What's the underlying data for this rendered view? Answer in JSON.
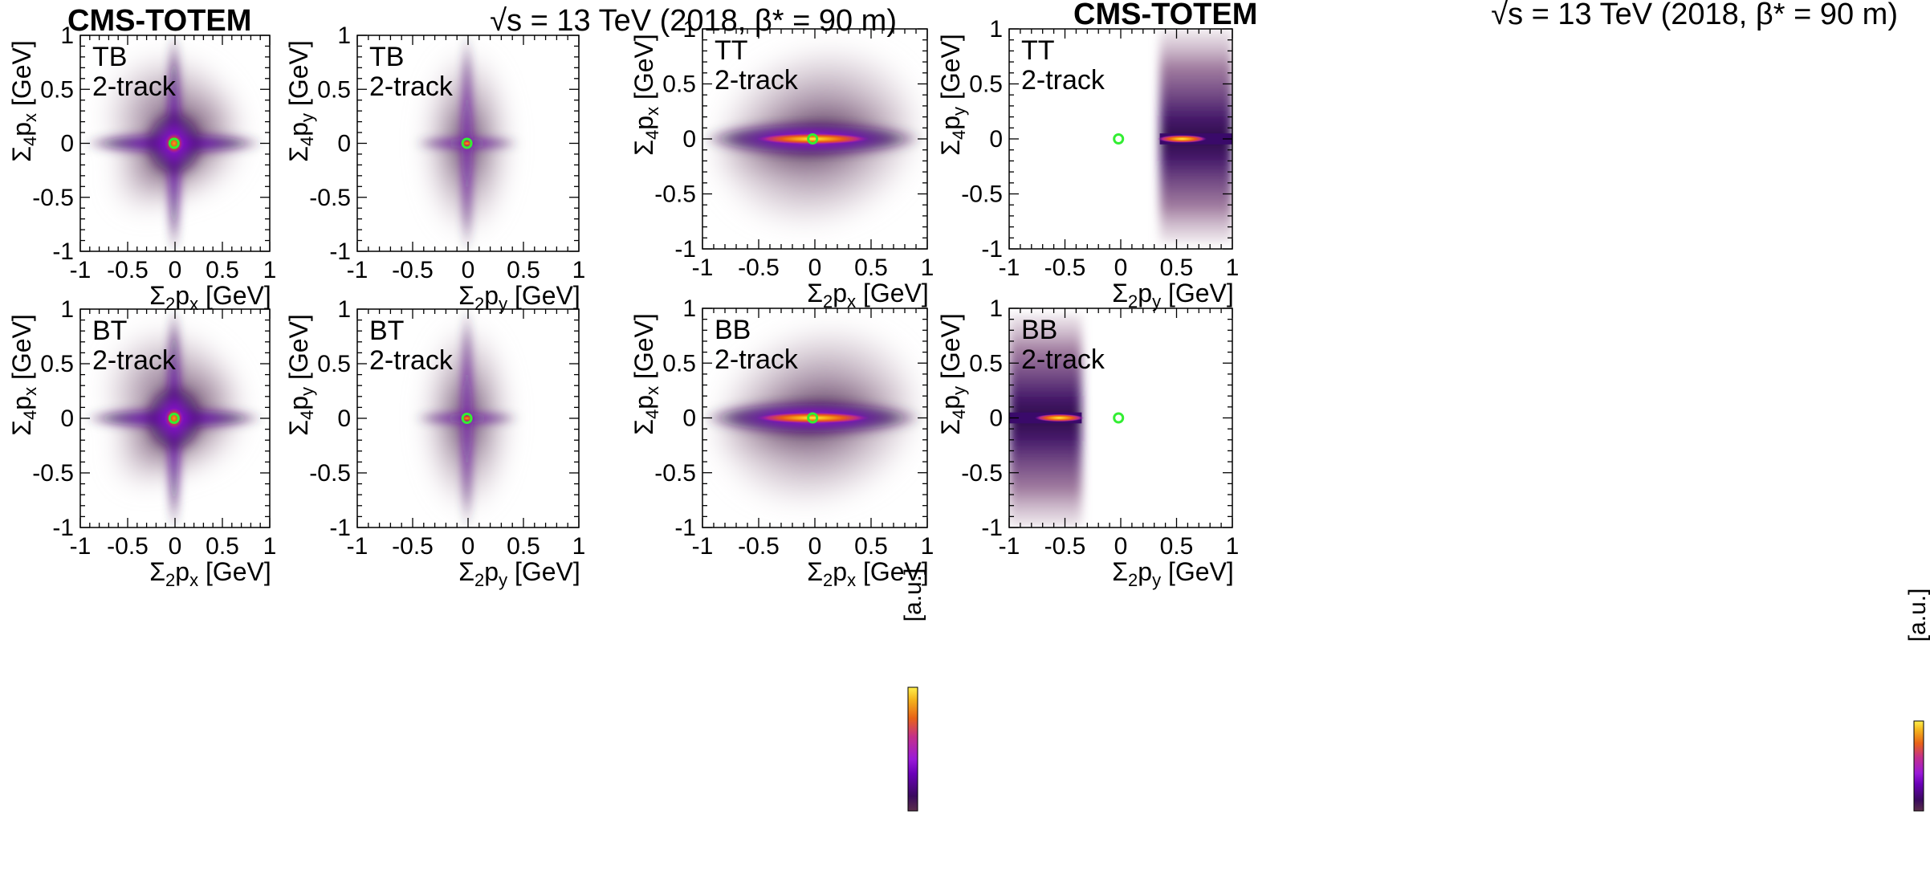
{
  "chart_data": [
    {
      "type": "heatmap",
      "panel": "TB-x",
      "labels": [
        "TB",
        "2-track"
      ],
      "xlabel": {
        "pre": "Σ",
        "sub1": "2",
        "mid": "p",
        "sub2": "x",
        "post": " [GeV]"
      },
      "ylabel": {
        "pre": "Σ",
        "sub1": "4",
        "mid": "p",
        "sub2": "x",
        "post": " [GeV]"
      },
      "xlim": [
        -1,
        1
      ],
      "ylim": [
        -1,
        1
      ],
      "x_ticks": [
        "-1",
        "-0.5",
        "0",
        "0.5",
        "1"
      ],
      "y_ticks": [
        "-1",
        "-0.5",
        "0",
        "0.5",
        "1"
      ],
      "distribution": {
        "shape": "cross",
        "peak": [
          -0.01,
          0.0
        ],
        "arm_extent": {
          "x": [
            -0.95,
            0.95
          ],
          "y": [
            -1.0,
            1.0
          ]
        },
        "diffuse_halo": true,
        "halo_direction": "NE-SW diagonal, more toward upper-right"
      },
      "marker": {
        "shape": "open-circle",
        "x": -0.01,
        "y": 0.0,
        "color": "#33ee33"
      }
    },
    {
      "type": "heatmap",
      "panel": "TB-y",
      "labels": [
        "TB",
        "2-track"
      ],
      "xlabel": {
        "pre": "Σ",
        "sub1": "2",
        "mid": "p",
        "sub2": "y",
        "post": " [GeV]"
      },
      "ylabel": {
        "pre": "Σ",
        "sub1": "4",
        "mid": "p",
        "sub2": "y",
        "post": " [GeV]"
      },
      "xlim": [
        -1,
        1
      ],
      "ylim": [
        -1,
        1
      ],
      "x_ticks": [
        "-1",
        "-0.5",
        "0",
        "0.5",
        "1"
      ],
      "y_ticks": [
        "-1",
        "-0.5",
        "0",
        "0.5",
        "1"
      ],
      "distribution": {
        "shape": "narrow-cross",
        "peak": [
          -0.01,
          0.0
        ],
        "arm_extent": {
          "x": [
            -0.48,
            0.48
          ],
          "y": [
            -1.0,
            1.0
          ]
        },
        "diffuse_halo": true,
        "halo_x_range": [
          -0.45,
          0.45
        ]
      },
      "marker": {
        "shape": "open-circle",
        "x": -0.01,
        "y": 0.0,
        "color": "#33ee33"
      }
    },
    {
      "type": "heatmap",
      "panel": "TT-x",
      "labels": [
        "TT",
        "2-track"
      ],
      "xlabel": {
        "pre": "Σ",
        "sub1": "2",
        "mid": "p",
        "sub2": "x",
        "post": " [GeV]"
      },
      "ylabel": {
        "pre": "Σ",
        "sub1": "4",
        "mid": "p",
        "sub2": "x",
        "post": " [GeV]"
      },
      "xlim": [
        -1,
        1
      ],
      "ylim": [
        -1,
        1
      ],
      "x_ticks": [
        "-1",
        "-0.5",
        "0",
        "0.5",
        "1"
      ],
      "y_ticks": [
        "-1",
        "-0.5",
        "0",
        "0.5",
        "1"
      ],
      "distribution": {
        "shape": "horizontal-ellipse",
        "peak": [
          -0.02,
          0.0
        ],
        "core_halfwidth": [
          0.5,
          0.05
        ],
        "diffuse_halo": true,
        "tilt": "positive correlation"
      },
      "marker": {
        "shape": "open-circle",
        "x": -0.02,
        "y": 0.0,
        "color": "#33ee33"
      }
    },
    {
      "type": "heatmap",
      "panel": "TT-y",
      "labels": [
        "TT",
        "2-track"
      ],
      "xlabel": {
        "pre": "Σ",
        "sub1": "2",
        "mid": "p",
        "sub2": "y",
        "post": " [GeV]"
      },
      "ylabel": {
        "pre": "Σ",
        "sub1": "4",
        "mid": "p",
        "sub2": "y",
        "post": " [GeV]"
      },
      "xlim": [
        -1,
        1
      ],
      "ylim": [
        -1,
        1
      ],
      "x_ticks": [
        "-1",
        "-0.5",
        "0",
        "0.5",
        "1"
      ],
      "y_ticks": [
        "-1",
        "-0.5",
        "0",
        "0.5",
        "1"
      ],
      "distribution": {
        "shape": "band",
        "peak": [
          0.55,
          0.0
        ],
        "x_range": [
          0.35,
          1.0
        ],
        "y_range": [
          -0.95,
          1.0
        ],
        "sharp_edge_x": 0.35
      },
      "marker": {
        "shape": "open-circle",
        "x": -0.02,
        "y": 0.0,
        "color": "#33ee33"
      }
    },
    {
      "type": "heatmap",
      "panel": "BT-x",
      "labels": [
        "BT",
        "2-track"
      ],
      "xlabel": {
        "pre": "Σ",
        "sub1": "2",
        "mid": "p",
        "sub2": "x",
        "post": " [GeV]"
      },
      "ylabel": {
        "pre": "Σ",
        "sub1": "4",
        "mid": "p",
        "sub2": "x",
        "post": " [GeV]"
      },
      "xlim": [
        -1,
        1
      ],
      "ylim": [
        -1,
        1
      ],
      "x_ticks": [
        "-1",
        "-0.5",
        "0",
        "0.5",
        "1"
      ],
      "y_ticks": [
        "-1",
        "-0.5",
        "0",
        "0.5",
        "1"
      ],
      "distribution": {
        "shape": "cross",
        "peak": [
          -0.01,
          0.0
        ],
        "arm_extent": {
          "x": [
            -0.95,
            0.95
          ],
          "y": [
            -1.0,
            1.0
          ]
        },
        "diffuse_halo": true,
        "halo_direction": "NE-SW diagonal, more toward upper-right"
      },
      "marker": {
        "shape": "open-circle",
        "x": -0.01,
        "y": 0.0,
        "color": "#33ee33"
      }
    },
    {
      "type": "heatmap",
      "panel": "BT-y",
      "labels": [
        "BT",
        "2-track"
      ],
      "xlabel": {
        "pre": "Σ",
        "sub1": "2",
        "mid": "p",
        "sub2": "y",
        "post": " [GeV]"
      },
      "ylabel": {
        "pre": "Σ",
        "sub1": "4",
        "mid": "p",
        "sub2": "y",
        "post": " [GeV]"
      },
      "xlim": [
        -1,
        1
      ],
      "ylim": [
        -1,
        1
      ],
      "x_ticks": [
        "-1",
        "-0.5",
        "0",
        "0.5",
        "1"
      ],
      "y_ticks": [
        "-1",
        "-0.5",
        "0",
        "0.5",
        "1"
      ],
      "distribution": {
        "shape": "narrow-cross",
        "peak": [
          -0.01,
          0.0
        ],
        "arm_extent": {
          "x": [
            -0.48,
            0.48
          ],
          "y": [
            -1.0,
            1.0
          ]
        },
        "diffuse_halo": true,
        "halo_x_range": [
          -0.45,
          0.45
        ]
      },
      "marker": {
        "shape": "open-circle",
        "x": -0.01,
        "y": 0.0,
        "color": "#33ee33"
      }
    },
    {
      "type": "heatmap",
      "panel": "BB-x",
      "labels": [
        "BB",
        "2-track"
      ],
      "xlabel": {
        "pre": "Σ",
        "sub1": "2",
        "mid": "p",
        "sub2": "x",
        "post": " [GeV]"
      },
      "ylabel": {
        "pre": "Σ",
        "sub1": "4",
        "mid": "p",
        "sub2": "x",
        "post": " [GeV]"
      },
      "xlim": [
        -1,
        1
      ],
      "ylim": [
        -1,
        1
      ],
      "x_ticks": [
        "-1",
        "-0.5",
        "0",
        "0.5",
        "1"
      ],
      "y_ticks": [
        "-1",
        "-0.5",
        "0",
        "0.5",
        "1"
      ],
      "distribution": {
        "shape": "horizontal-ellipse",
        "peak": [
          -0.02,
          0.0
        ],
        "core_halfwidth": [
          0.5,
          0.05
        ],
        "diffuse_halo": true,
        "tilt": "positive correlation"
      },
      "marker": {
        "shape": "open-circle",
        "x": -0.02,
        "y": 0.0,
        "color": "#33ee33"
      }
    },
    {
      "type": "heatmap",
      "panel": "BB-y",
      "labels": [
        "BB",
        "2-track"
      ],
      "xlabel": {
        "pre": "Σ",
        "sub1": "2",
        "mid": "p",
        "sub2": "y",
        "post": " [GeV]"
      },
      "ylabel": {
        "pre": "Σ",
        "sub1": "4",
        "mid": "p",
        "sub2": "y",
        "post": " [GeV]"
      },
      "xlim": [
        -1,
        1
      ],
      "ylim": [
        -1,
        1
      ],
      "x_ticks": [
        "-1",
        "-0.5",
        "0",
        "0.5",
        "1"
      ],
      "y_ticks": [
        "-1",
        "-0.5",
        "0",
        "0.5",
        "1"
      ],
      "distribution": {
        "shape": "band",
        "peak": [
          -0.55,
          0.0
        ],
        "x_range": [
          -1.0,
          -0.35
        ],
        "y_range": [
          -1.0,
          0.95
        ],
        "sharp_edge_x": -0.35
      },
      "marker": {
        "shape": "open-circle",
        "x": -0.02,
        "y": 0.0,
        "color": "#33ee33"
      }
    }
  ],
  "headers": [
    {
      "experiment": "CMS-TOTEM",
      "energy": "√s = 13 TeV (2018, β* = 90 m)"
    },
    {
      "experiment": "CMS-TOTEM",
      "energy": "√s = 13 TeV (2018, β* = 90 m)"
    }
  ],
  "colorbar": {
    "title": "[a.u.]",
    "palette": [
      "#5a2e4a",
      "#3a0a5e",
      "#6a00b8",
      "#9a1ad8",
      "#c4308a",
      "#e86218",
      "#f4b41c",
      "#fff04a"
    ]
  },
  "colors": {
    "marker": "#33ee33",
    "halo_light": "#d7ccd4",
    "background": "#ffffff"
  }
}
